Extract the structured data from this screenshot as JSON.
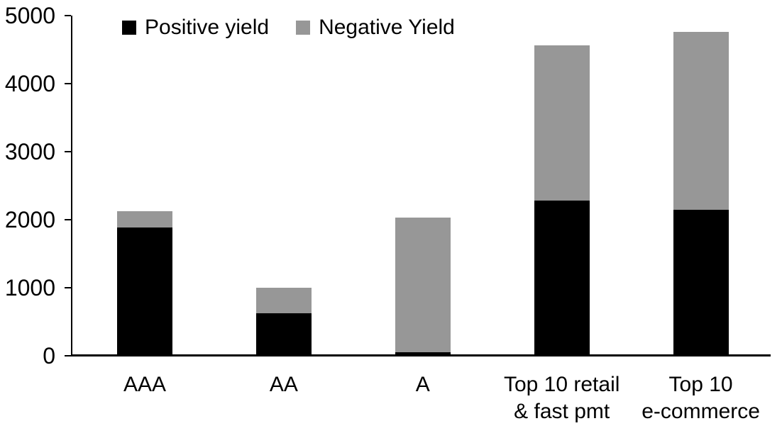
{
  "chart_data": {
    "type": "bar",
    "stacked": true,
    "title": "",
    "xlabel": "",
    "ylabel": "",
    "categories": [
      "AAA",
      "AA",
      "A",
      "Top 10 retail\n& fast pmt",
      "Top 10\ne-commerce"
    ],
    "series": [
      {
        "name": "Positive yield",
        "color": "#000000",
        "values": [
          1890,
          620,
          50,
          2280,
          2150
        ]
      },
      {
        "name": "Negative Yield",
        "color": "#979797",
        "values": [
          240,
          380,
          1980,
          2280,
          2610
        ]
      }
    ],
    "ylim": [
      0,
      5000
    ],
    "yticks": [
      0,
      1000,
      2000,
      3000,
      4000,
      5000
    ],
    "legend_position": "top-left",
    "grid": false,
    "axis_color": "#000000",
    "background_color": "#ffffff"
  }
}
